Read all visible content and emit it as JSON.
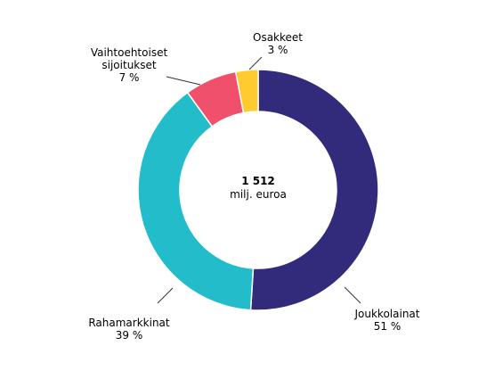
{
  "chart_data": {
    "type": "pie",
    "center": {
      "total": "1 512",
      "unit": "milj. euroa"
    },
    "slices": [
      {
        "name": "Joukkolainat",
        "value": 51,
        "label": "51 %",
        "color": "#322B7C"
      },
      {
        "name": "Rahamarkkinat",
        "value": 39,
        "label": "39 %",
        "color": "#22BCCB"
      },
      {
        "name_line1": "Vaihtoehtoiset",
        "name_line2": "sijoitukset",
        "value": 7,
        "label": "7 %",
        "color": "#F1506C"
      },
      {
        "name": "Osakkeet",
        "value": 3,
        "label": "3 %",
        "color": "#FFCB2F"
      }
    ]
  }
}
